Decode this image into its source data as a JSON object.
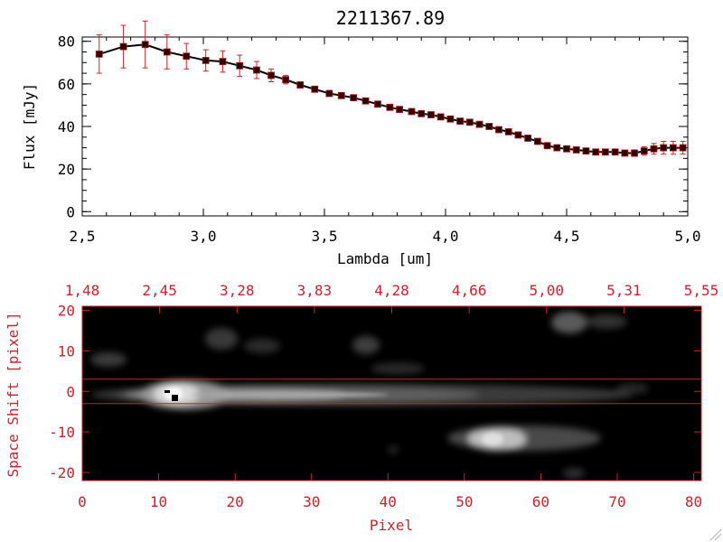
{
  "colors": {
    "accent": "#d0202a",
    "line": "#000000",
    "marker": "#2a0000",
    "errorbar": "#d0202a",
    "image_bg": "#000000"
  },
  "chart_data": [
    {
      "type": "line",
      "title": "2211367.89",
      "xlabel": "Lambda [um]",
      "ylabel": "Flux [mJy]",
      "xlim": [
        2.5,
        5.0
      ],
      "ylim": [
        -2,
        82
      ],
      "x_ticks": [
        2.5,
        3.0,
        3.5,
        4.0,
        4.5,
        5.0
      ],
      "x_tick_labels": [
        "2,5",
        "3,0",
        "3,5",
        "4,0",
        "4,5",
        "5,0"
      ],
      "y_ticks": [
        0,
        20,
        40,
        60,
        80
      ],
      "y_tick_labels": [
        "0",
        "20",
        "40",
        "60",
        "80"
      ],
      "grid": false,
      "series": [
        {
          "x": [
            2.57,
            2.67,
            2.76,
            2.85,
            2.93,
            3.01,
            3.08,
            3.15,
            3.22,
            3.28,
            3.34,
            3.4,
            3.46,
            3.52,
            3.57,
            3.62,
            3.67,
            3.72,
            3.77,
            3.81,
            3.86,
            3.9,
            3.94,
            3.98,
            4.02,
            4.06,
            4.1,
            4.14,
            4.18,
            4.22,
            4.26,
            4.3,
            4.34,
            4.38,
            4.42,
            4.46,
            4.5,
            4.54,
            4.58,
            4.62,
            4.66,
            4.7,
            4.74,
            4.78,
            4.82,
            4.86,
            4.9,
            4.94,
            4.98
          ],
          "y": [
            74,
            77.5,
            78.5,
            75,
            73,
            71,
            70.5,
            68.5,
            66.5,
            64,
            62,
            59.5,
            57.5,
            55.5,
            54.5,
            53.5,
            52,
            50.5,
            49,
            48,
            47,
            46,
            45.5,
            44.5,
            43.5,
            42.5,
            42,
            41,
            40,
            38.5,
            37.5,
            36,
            34.5,
            33,
            31,
            30,
            29.5,
            29,
            28.5,
            28,
            28,
            28,
            27.5,
            27.5,
            28.5,
            29.5,
            30,
            30,
            30
          ],
          "yerr": [
            9,
            10,
            11,
            8,
            6,
            5,
            5,
            5,
            4,
            3,
            2,
            1.5,
            1,
            1,
            1,
            1,
            1,
            1,
            1,
            1,
            1,
            1,
            1,
            1,
            1,
            1,
            1,
            1,
            1,
            1,
            1,
            1,
            1,
            1,
            1,
            1,
            1,
            1,
            1,
            1,
            1,
            1,
            1,
            1.5,
            2,
            2.5,
            3,
            3,
            3
          ]
        }
      ]
    },
    {
      "type": "heatmap",
      "xlabel": "Pixel",
      "ylabel": "Space Shift [pixel]",
      "xlim": [
        0,
        81
      ],
      "ylim": [
        -22,
        21
      ],
      "x_ticks": [
        0,
        10,
        20,
        30,
        40,
        50,
        60,
        70,
        80
      ],
      "x_tick_labels": [
        "0",
        "10",
        "20",
        "30",
        "40",
        "50",
        "60",
        "70",
        "80"
      ],
      "y_ticks": [
        -20,
        -10,
        0,
        10,
        20
      ],
      "y_tick_labels": [
        "-20",
        "-10",
        "0",
        "10",
        "20"
      ],
      "top_axis_labels": [
        "1,48",
        "2,45",
        "3,28",
        "3,83",
        "4,28",
        "4,66",
        "5,00",
        "5,31",
        "5,55"
      ],
      "extraction_band": [
        -3,
        3
      ],
      "colormap": "grayscale"
    }
  ]
}
